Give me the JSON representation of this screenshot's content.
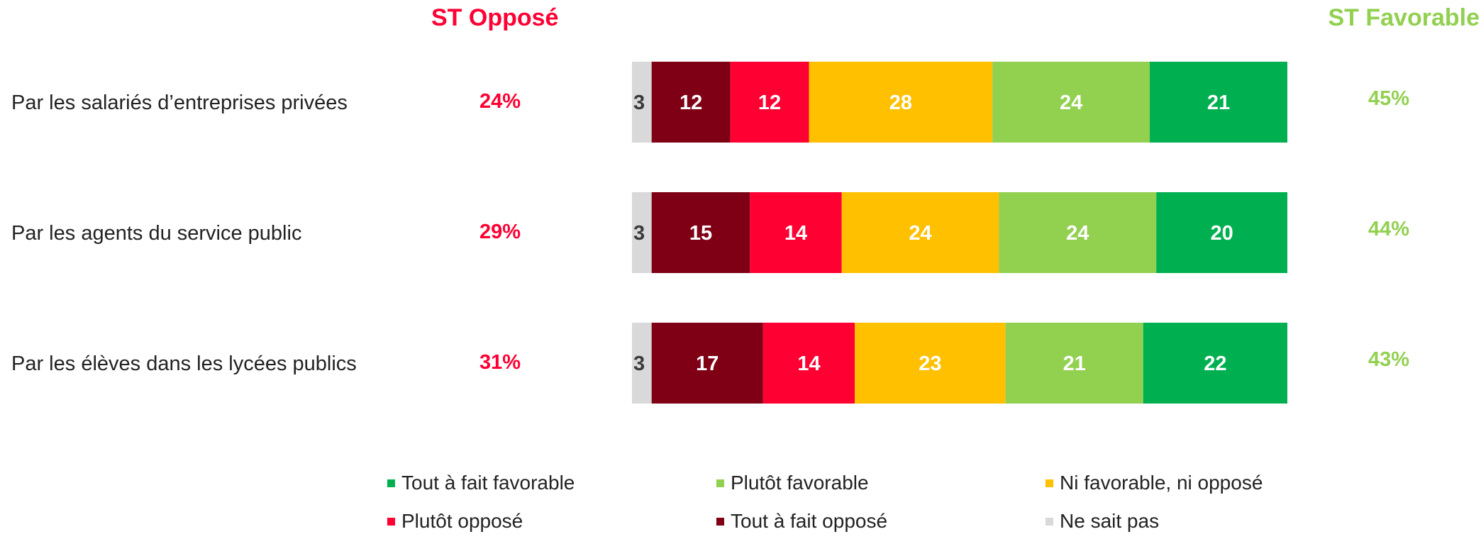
{
  "header": {
    "left": "ST Opposé",
    "right": "ST Favorable"
  },
  "colors": {
    "Ne sait pas": "#d9d9d9",
    "Tout à fait opposé": "#7f0015",
    "Plutôt opposé": "#ff0033",
    "Ni favorable, ni opposé": "#ffc000",
    "Plutôt favorable": "#92d050",
    "Tout à fait favorable": "#00b050",
    "opposed_text": "#ff0033",
    "favorable_text": "#92d050"
  },
  "chart_data": {
    "type": "bar",
    "orientation": "horizontal",
    "stacked": true,
    "categories": [
      "Par les salariés d’entreprises privées",
      "Par les agents du service public",
      "Par les élèves dans les lycées publics"
    ],
    "series": [
      {
        "name": "Ne sait pas",
        "values": [
          3,
          3,
          3
        ]
      },
      {
        "name": "Tout à fait opposé",
        "values": [
          12,
          15,
          17
        ]
      },
      {
        "name": "Plutôt opposé",
        "values": [
          12,
          14,
          14
        ]
      },
      {
        "name": "Ni favorable, ni opposé",
        "values": [
          28,
          24,
          23
        ]
      },
      {
        "name": "Plutôt favorable",
        "values": [
          24,
          24,
          21
        ]
      },
      {
        "name": "Tout à fait favorable",
        "values": [
          21,
          20,
          22
        ]
      }
    ],
    "st_oppose": [
      "24%",
      "29%",
      "31%"
    ],
    "st_favorable": [
      "45%",
      "44%",
      "43%"
    ],
    "legend_order": [
      "Tout à fait favorable",
      "Plutôt favorable",
      "Ni favorable, ni opposé",
      "Plutôt opposé",
      "Tout à fait opposé",
      "Ne sait pas"
    ],
    "legend_position": "bottom"
  }
}
